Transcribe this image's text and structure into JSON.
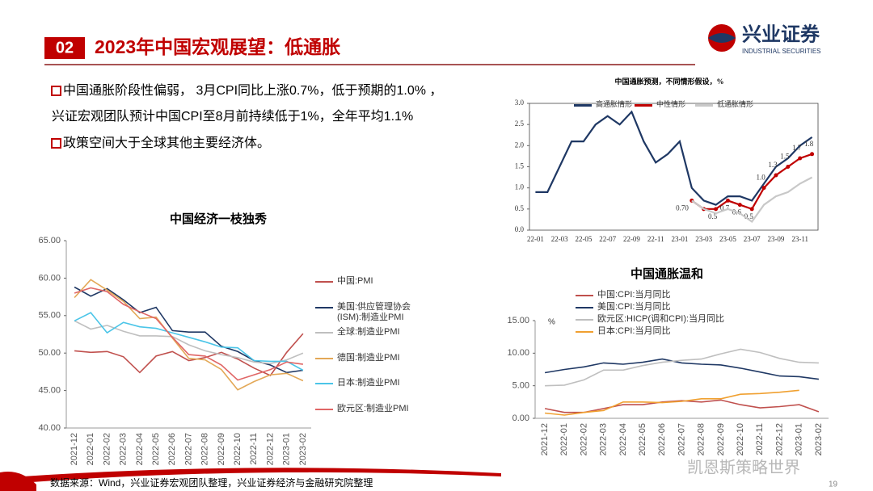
{
  "header": {
    "number": "02",
    "title": "2023年中国宏观展望：低通胀"
  },
  "logo": {
    "name": "兴业证券",
    "name_en": "INDUSTRIAL SECURITIES"
  },
  "bullets": [
    "中国通胀阶段性偏弱， 3月CPI同比上涨0.7%，低于预期的1.0% ，",
    "兴证宏观团队预计中国CPI至8月前持续低于1%，全年平均1.1%",
    "政策空间大于全球其他主要经济体。"
  ],
  "source": "数据来源：Wind，兴业证券宏观团队整理，兴业证券经济与金融研究院整理",
  "watermark": "凯恩斯策略世界",
  "page": "19",
  "chart_data": [
    {
      "type": "line",
      "title": "中国经济一枝独秀",
      "legend": "right",
      "grid": false,
      "categories": [
        "2021-12",
        "2022-01",
        "2022-02",
        "2022-03",
        "2022-04",
        "2022-05",
        "2022-06",
        "2022-07",
        "2022-08",
        "2022-09",
        "2022-10",
        "2022-11",
        "2022-12",
        "2023-01",
        "2023-02"
      ],
      "ylim": [
        40,
        65
      ],
      "yticks": [
        {
          "value": 40,
          "label": "40.00"
        },
        {
          "value": 45,
          "label": "45.00"
        },
        {
          "value": 50,
          "label": "50.00"
        },
        {
          "value": 55,
          "label": "55.00"
        },
        {
          "value": 60,
          "label": "60.00"
        },
        {
          "value": 65,
          "label": "65.00"
        }
      ],
      "series": [
        {
          "name": "中国:PMI",
          "color": "#c0504d",
          "values": [
            50.3,
            50.1,
            50.2,
            49.5,
            47.4,
            49.6,
            50.2,
            49.0,
            49.4,
            50.1,
            49.2,
            48.0,
            47.0,
            50.1,
            52.6
          ]
        },
        {
          "name": "美国:供应管理协会(ISM):制造业PMI",
          "color": "#1f3864",
          "values": [
            58.8,
            57.6,
            58.6,
            57.1,
            55.4,
            56.1,
            53.0,
            52.8,
            52.8,
            50.9,
            50.2,
            49.0,
            48.4,
            47.4,
            47.7
          ]
        },
        {
          "name": "全球:制造业PMI",
          "color": "#bfbfbf",
          "values": [
            54.3,
            53.2,
            53.7,
            52.9,
            52.3,
            52.3,
            52.2,
            51.1,
            50.3,
            49.8,
            49.4,
            48.8,
            48.6,
            49.1,
            50.0
          ]
        },
        {
          "name": "德国:制造业PMI",
          "color": "#e3a857",
          "values": [
            57.4,
            59.8,
            58.4,
            56.9,
            54.6,
            54.8,
            52.0,
            49.3,
            49.1,
            47.8,
            45.1,
            46.2,
            47.1,
            47.3,
            46.3
          ]
        },
        {
          "name": "日本:制造业PMI",
          "color": "#4bc5e8",
          "values": [
            54.3,
            55.4,
            52.7,
            54.1,
            53.5,
            53.3,
            52.7,
            52.1,
            51.5,
            50.8,
            50.7,
            49.0,
            48.9,
            48.9,
            47.7
          ]
        },
        {
          "name": "欧元区:制造业PMI",
          "color": "#e06666",
          "values": [
            58.0,
            58.7,
            58.2,
            56.5,
            55.5,
            54.6,
            52.1,
            49.8,
            49.6,
            48.4,
            46.4,
            47.1,
            47.8,
            48.8,
            48.5
          ]
        }
      ]
    },
    {
      "type": "line",
      "title": "中国通胀预测，不同情形假设，%",
      "legend": "top",
      "grid": false,
      "categories": [
        "22-01",
        null,
        "22-03",
        null,
        "22-05",
        null,
        "22-07",
        null,
        "22-09",
        null,
        "22-11",
        null,
        "23-01",
        null,
        "23-03",
        null,
        "23-05",
        null,
        "23-07",
        null,
        "23-09",
        null,
        "23-11",
        null
      ],
      "ylim": [
        0,
        3
      ],
      "yticks": [
        {
          "value": 0,
          "label": "0.0"
        },
        {
          "value": 0.5,
          "label": "0.5"
        },
        {
          "value": 1,
          "label": "1.0"
        },
        {
          "value": 1.5,
          "label": "1.5"
        },
        {
          "value": 2,
          "label": "2.0"
        },
        {
          "value": 2.5,
          "label": "2.5"
        },
        {
          "value": 3,
          "label": "3.0"
        }
      ],
      "series": [
        {
          "name": "高通胀情形",
          "color": "#1f3864",
          "values": [
            0.9,
            0.9,
            1.5,
            2.1,
            2.1,
            2.5,
            2.7,
            2.5,
            2.8,
            2.1,
            1.6,
            1.8,
            2.1,
            1.0,
            0.7,
            0.6,
            0.8,
            0.8,
            0.7,
            1.1,
            1.5,
            1.7,
            2.0,
            2.2
          ]
        },
        {
          "name": "中性情形",
          "color": "#c00000",
          "markers": true,
          "values": [
            null,
            null,
            null,
            null,
            null,
            null,
            null,
            null,
            null,
            null,
            null,
            null,
            null,
            0.7,
            0.5,
            0.5,
            0.7,
            0.6,
            0.5,
            1.0,
            1.3,
            1.5,
            1.7,
            1.8
          ],
          "value_labels": [
            null,
            null,
            null,
            null,
            null,
            null,
            null,
            null,
            null,
            null,
            null,
            null,
            null,
            "0.70",
            null,
            "0.5",
            "0.7",
            "0.6",
            "0.5",
            "1.0",
            "1.3",
            "1.5",
            "1.7",
            "1.8"
          ]
        },
        {
          "name": "低通胀情形",
          "color": "#c8c8c8",
          "values": [
            null,
            null,
            null,
            null,
            null,
            null,
            null,
            null,
            null,
            null,
            null,
            null,
            null,
            0.7,
            0.5,
            0.4,
            0.5,
            0.4,
            0.2,
            0.6,
            0.8,
            0.9,
            1.1,
            1.25
          ]
        }
      ]
    },
    {
      "type": "line",
      "title": "中国通胀温和",
      "legend": "top-left",
      "grid": false,
      "y_unit": "%",
      "categories": [
        "2021-12",
        "2022-01",
        "2022-02",
        "2022-03",
        "2022-04",
        "2022-05",
        "2022-06",
        "2022-07",
        "2022-08",
        "2022-09",
        "2022-10",
        "2022-11",
        "2022-12",
        "2023-01",
        "2023-02"
      ],
      "ylim": [
        0,
        15
      ],
      "yticks": [
        {
          "value": 0,
          "label": "0.00"
        },
        {
          "value": 5,
          "label": "5.00"
        },
        {
          "value": 10,
          "label": "10.00"
        },
        {
          "value": 15,
          "label": "15.00"
        }
      ],
      "series": [
        {
          "name": "中国:CPI:当月同比",
          "color": "#c0504d",
          "values": [
            1.5,
            0.9,
            0.9,
            1.5,
            2.1,
            2.1,
            2.5,
            2.7,
            2.5,
            2.8,
            2.1,
            1.6,
            1.8,
            2.1,
            1.0
          ]
        },
        {
          "name": "美国:CPI:当月同比",
          "color": "#1f3864",
          "values": [
            7.0,
            7.5,
            7.9,
            8.5,
            8.3,
            8.6,
            9.1,
            8.5,
            8.3,
            8.2,
            7.7,
            7.1,
            6.5,
            6.4,
            6.0
          ]
        },
        {
          "name": "欧元区:HICP(调和CPI):当月同比",
          "color": "#bfbfbf",
          "values": [
            5.0,
            5.1,
            5.9,
            7.4,
            7.4,
            8.1,
            8.6,
            8.9,
            9.1,
            9.9,
            10.6,
            10.1,
            9.2,
            8.6,
            8.5
          ]
        },
        {
          "name": "日本:CPI:当月同比",
          "color": "#f0a030",
          "values": [
            0.8,
            0.5,
            0.9,
            1.2,
            2.5,
            2.5,
            2.4,
            2.6,
            3.0,
            3.0,
            3.7,
            3.8,
            4.0,
            4.3,
            null
          ]
        }
      ]
    }
  ]
}
